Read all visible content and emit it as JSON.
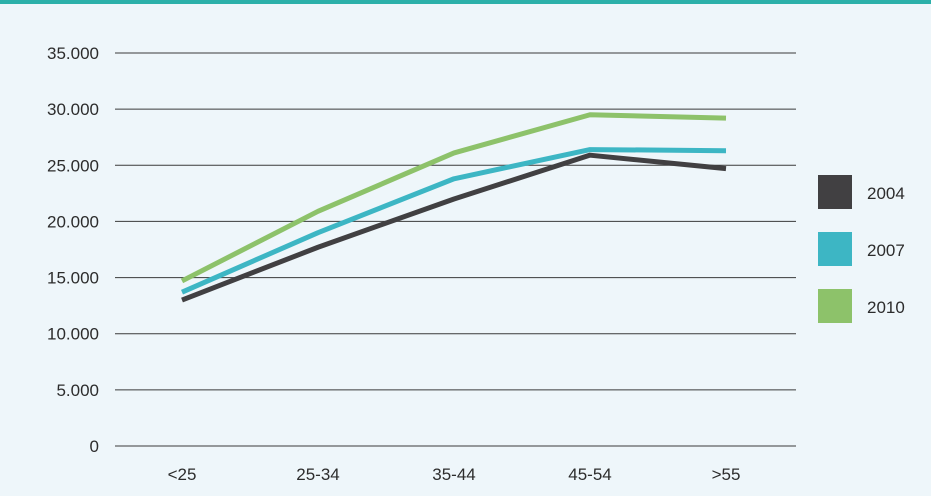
{
  "chart_data": {
    "type": "line",
    "title": "",
    "xlabel": "",
    "ylabel": "",
    "categories": [
      "<25",
      "25-34",
      "35-44",
      "45-54",
      ">55"
    ],
    "ylim": [
      0,
      35000
    ],
    "yticks": [
      0,
      5000,
      10000,
      15000,
      20000,
      25000,
      30000,
      35000
    ],
    "ytick_labels": [
      "0",
      "5.000",
      "10.000",
      "15.000",
      "20.000",
      "25.000",
      "30.000",
      "35.000"
    ],
    "grid": "horizontal",
    "legend_position": "right",
    "series": [
      {
        "name": "2004",
        "color": "#414042",
        "values": [
          13000,
          17700,
          22000,
          25900,
          24700
        ]
      },
      {
        "name": "2007",
        "color": "#3db6c4",
        "values": [
          13700,
          19000,
          23800,
          26400,
          26300
        ]
      },
      {
        "name": "2010",
        "color": "#8dc26a",
        "values": [
          14700,
          20900,
          26100,
          29500,
          29200
        ]
      }
    ]
  }
}
